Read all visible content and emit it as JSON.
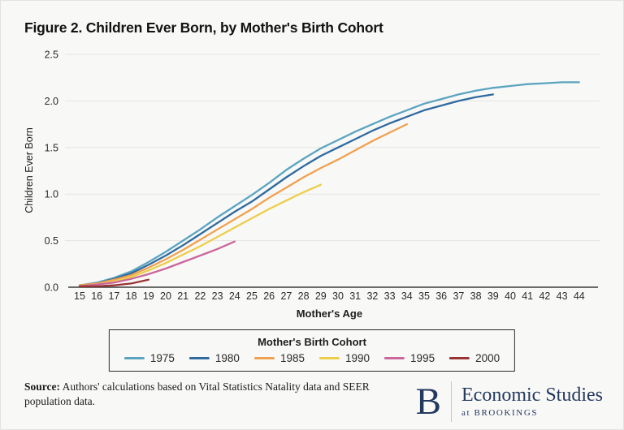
{
  "title": "Figure 2. Children Ever Born, by Mother's Birth Cohort",
  "chart_data": {
    "type": "line",
    "title": "Figure 2. Children Ever Born, by Mother's Birth Cohort",
    "xlabel": "Mother's Age",
    "ylabel": "Children Ever Born",
    "xlim": [
      15,
      44
    ],
    "ylim": [
      0,
      2.5
    ],
    "x_ticks": [
      15,
      16,
      17,
      18,
      19,
      20,
      21,
      22,
      23,
      24,
      25,
      26,
      27,
      28,
      29,
      30,
      31,
      32,
      33,
      34,
      35,
      36,
      37,
      38,
      39,
      40,
      41,
      42,
      43,
      44
    ],
    "y_ticks": [
      "0.0",
      "0.5",
      "1.0",
      "1.5",
      "2.0",
      "2.5"
    ],
    "grid": "horizontal",
    "grid_color": "#e4e4e2",
    "axis_color": "#3c3c3c",
    "tick_color": "#2b2b2b",
    "legend": {
      "title": "Mother's Birth Cohort",
      "position": "bottom-boxed"
    },
    "series": [
      {
        "name": "1975",
        "color": "#5ba4c0",
        "x_start": 15,
        "values": [
          0.02,
          0.05,
          0.1,
          0.17,
          0.27,
          0.38,
          0.5,
          0.62,
          0.75,
          0.87,
          0.99,
          1.12,
          1.26,
          1.38,
          1.49,
          1.58,
          1.67,
          1.75,
          1.83,
          1.9,
          1.97,
          2.02,
          2.07,
          2.11,
          2.14,
          2.16,
          2.18,
          2.19,
          2.2,
          2.2
        ]
      },
      {
        "name": "1980",
        "color": "#2e6a9e",
        "x_start": 15,
        "values": [
          0.02,
          0.04,
          0.09,
          0.15,
          0.24,
          0.34,
          0.45,
          0.57,
          0.69,
          0.81,
          0.92,
          1.05,
          1.18,
          1.3,
          1.41,
          1.5,
          1.59,
          1.68,
          1.76,
          1.83,
          1.9,
          1.95,
          2.0,
          2.04,
          2.07
        ]
      },
      {
        "name": "1985",
        "color": "#f0a14f",
        "x_start": 15,
        "values": [
          0.02,
          0.04,
          0.08,
          0.13,
          0.21,
          0.3,
          0.4,
          0.51,
          0.62,
          0.73,
          0.84,
          0.96,
          1.07,
          1.18,
          1.28,
          1.37,
          1.47,
          1.57,
          1.66,
          1.75
        ]
      },
      {
        "name": "1990",
        "color": "#ecce4a",
        "x_start": 15,
        "values": [
          0.01,
          0.03,
          0.06,
          0.11,
          0.18,
          0.26,
          0.35,
          0.44,
          0.54,
          0.64,
          0.74,
          0.84,
          0.93,
          1.02,
          1.1
        ]
      },
      {
        "name": "1995",
        "color": "#ca679d",
        "x_start": 15,
        "values": [
          0.01,
          0.03,
          0.05,
          0.09,
          0.14,
          0.2,
          0.27,
          0.34,
          0.41,
          0.49
        ]
      },
      {
        "name": "2000",
        "color": "#9a3434",
        "x_start": 15,
        "values": [
          0.01,
          0.01,
          0.02,
          0.04,
          0.08
        ]
      }
    ]
  },
  "footer": {
    "source_label": "Source:",
    "source_text": " Authors' calculations based on Vital Statistics Natality data and SEER population data."
  },
  "logo": {
    "letter": "B",
    "line1": "Economic Studies",
    "line2": "at BROOKINGS",
    "color": "#24395e"
  }
}
